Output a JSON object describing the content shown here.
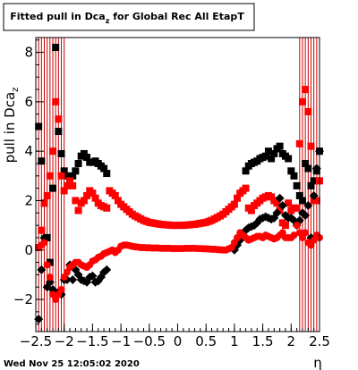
{
  "footer": {
    "timestamp": "Wed Nov 25 12:05:02 2020"
  },
  "chart_data": {
    "type": "scatter",
    "title_main": "Fitted pull in Dca",
    "title_sub": "z",
    "title_rest": " for Global Rec All EtapT",
    "ylabel_main": "pull in Dca",
    "ylabel_sub": "z",
    "xlabel": "η",
    "xlim": [
      -2.5,
      2.5
    ],
    "ylim": [
      -3.3,
      8.6
    ],
    "grid": false,
    "x_ticks": [
      -2.5,
      -2,
      -1.5,
      -1,
      -0.5,
      0,
      0.5,
      1,
      1.5,
      2,
      2.5
    ],
    "x_tick_labels": [
      "−2.5",
      "−2",
      "−1.5",
      "−1",
      "−0.5",
      "0",
      "0.5",
      "1",
      "1.5",
      "2",
      "2.5"
    ],
    "y_ticks": [
      -2,
      0,
      2,
      4,
      6,
      8
    ],
    "y_tick_labels": [
      "−2",
      "0",
      "2",
      "4",
      "6",
      "8"
    ],
    "colors": {
      "series_black": "#000000",
      "series_red": "#ff0000",
      "errors_red": "#cc0000"
    },
    "series": [
      {
        "marker": "square",
        "color": "#000000",
        "points": [
          [
            -2.45,
            5.0
          ],
          [
            -2.4,
            3.6
          ],
          [
            -2.35,
            1.9
          ],
          [
            -2.3,
            0.5
          ],
          [
            -2.25,
            -0.5
          ],
          [
            -2.2,
            2.5
          ],
          [
            -2.15,
            8.2
          ],
          [
            -2.1,
            4.8
          ],
          [
            -2.05,
            3.9
          ],
          [
            -2.0,
            3.2
          ],
          [
            -1.95,
            3.0
          ],
          [
            -1.9,
            2.9
          ],
          [
            -1.85,
            3.0
          ],
          [
            -1.8,
            3.2
          ],
          [
            -1.75,
            3.5
          ],
          [
            -1.7,
            3.8
          ],
          [
            -1.65,
            3.9
          ],
          [
            -1.6,
            3.75
          ],
          [
            -1.55,
            3.55
          ],
          [
            -1.5,
            3.55
          ],
          [
            -1.45,
            3.6
          ],
          [
            -1.4,
            3.5
          ],
          [
            -1.35,
            3.4
          ],
          [
            -1.3,
            3.3
          ],
          [
            -1.25,
            3.1
          ],
          [
            1.2,
            3.2
          ],
          [
            1.25,
            3.4
          ],
          [
            1.3,
            3.5
          ],
          [
            1.35,
            3.55
          ],
          [
            1.4,
            3.6
          ],
          [
            1.45,
            3.7
          ],
          [
            1.5,
            3.75
          ],
          [
            1.55,
            3.8
          ],
          [
            1.6,
            4.0
          ],
          [
            1.65,
            3.7
          ],
          [
            1.7,
            3.9
          ],
          [
            1.75,
            4.1
          ],
          [
            1.8,
            4.2
          ],
          [
            1.85,
            3.9
          ],
          [
            1.9,
            3.8
          ],
          [
            1.95,
            3.7
          ],
          [
            2.0,
            3.2
          ],
          [
            2.05,
            3.0
          ],
          [
            2.1,
            2.6
          ],
          [
            2.15,
            2.2
          ],
          [
            2.2,
            2.0
          ],
          [
            2.25,
            3.5
          ],
          [
            2.3,
            3.3
          ],
          [
            2.35,
            2.6
          ],
          [
            2.4,
            2.8
          ],
          [
            2.45,
            3.2
          ],
          [
            2.5,
            4.0
          ]
        ]
      },
      {
        "marker": "square",
        "color": "#ff0000",
        "points": [
          [
            -2.45,
            0.1
          ],
          [
            -2.4,
            0.8
          ],
          [
            -2.35,
            1.9
          ],
          [
            -2.3,
            2.2
          ],
          [
            -2.25,
            3.0
          ],
          [
            -2.2,
            4.0
          ],
          [
            -2.15,
            6.0
          ],
          [
            -2.1,
            5.3
          ],
          [
            -2.05,
            3.0
          ],
          [
            -2.0,
            2.4
          ],
          [
            -1.95,
            2.6
          ],
          [
            -1.9,
            2.8
          ],
          [
            -1.85,
            2.6
          ],
          [
            -1.8,
            2.0
          ],
          [
            -1.75,
            1.6
          ],
          [
            -1.7,
            1.9
          ],
          [
            -1.65,
            2.0
          ],
          [
            -1.6,
            2.2
          ],
          [
            -1.55,
            2.4
          ],
          [
            -1.5,
            2.3
          ],
          [
            -1.45,
            2.1
          ],
          [
            -1.4,
            1.9
          ],
          [
            -1.35,
            1.8
          ],
          [
            -1.3,
            1.75
          ],
          [
            -1.25,
            1.7
          ],
          [
            -1.2,
            2.4
          ],
          [
            -1.15,
            2.3
          ],
          [
            -1.1,
            2.2
          ],
          [
            -1.05,
            2.0
          ],
          [
            -1.0,
            1.85
          ],
          [
            -0.95,
            1.75
          ],
          [
            -0.9,
            1.65
          ],
          [
            -0.85,
            1.55
          ],
          [
            -0.8,
            1.45
          ],
          [
            -0.75,
            1.38
          ],
          [
            -0.7,
            1.32
          ],
          [
            -0.65,
            1.26
          ],
          [
            -0.6,
            1.2
          ],
          [
            -0.55,
            1.16
          ],
          [
            -0.5,
            1.12
          ],
          [
            -0.45,
            1.1
          ],
          [
            -0.4,
            1.08
          ],
          [
            -0.35,
            1.06
          ],
          [
            -0.3,
            1.04
          ],
          [
            -0.25,
            1.03
          ],
          [
            -0.2,
            1.02
          ],
          [
            -0.15,
            1.01
          ],
          [
            -0.1,
            1.0
          ],
          [
            -0.05,
            1.0
          ],
          [
            0.0,
            1.0
          ],
          [
            0.05,
            1.0
          ],
          [
            0.1,
            1.0
          ],
          [
            0.15,
            1.01
          ],
          [
            0.2,
            1.02
          ],
          [
            0.25,
            1.03
          ],
          [
            0.3,
            1.04
          ],
          [
            0.35,
            1.06
          ],
          [
            0.4,
            1.08
          ],
          [
            0.45,
            1.1
          ],
          [
            0.5,
            1.12
          ],
          [
            0.55,
            1.16
          ],
          [
            0.6,
            1.2
          ],
          [
            0.65,
            1.26
          ],
          [
            0.7,
            1.32
          ],
          [
            0.75,
            1.38
          ],
          [
            0.8,
            1.45
          ],
          [
            0.85,
            1.55
          ],
          [
            0.9,
            1.65
          ],
          [
            0.95,
            1.75
          ],
          [
            1.0,
            1.85
          ],
          [
            1.05,
            2.1
          ],
          [
            1.1,
            2.3
          ],
          [
            1.15,
            2.4
          ],
          [
            1.2,
            2.5
          ],
          [
            1.25,
            1.7
          ],
          [
            1.3,
            1.6
          ],
          [
            1.35,
            1.8
          ],
          [
            1.4,
            1.9
          ],
          [
            1.45,
            2.0
          ],
          [
            1.5,
            2.1
          ],
          [
            1.55,
            2.15
          ],
          [
            1.6,
            2.2
          ],
          [
            1.65,
            2.15
          ],
          [
            1.7,
            2.0
          ],
          [
            1.75,
            1.9
          ],
          [
            1.8,
            1.6
          ],
          [
            1.85,
            1.1
          ],
          [
            1.9,
            1.0
          ],
          [
            1.95,
            1.9
          ],
          [
            2.0,
            1.6
          ],
          [
            2.05,
            1.7
          ],
          [
            2.1,
            1.7
          ],
          [
            2.15,
            4.3
          ],
          [
            2.2,
            6.0
          ],
          [
            2.25,
            6.5
          ],
          [
            2.3,
            5.6
          ],
          [
            2.35,
            4.2
          ],
          [
            2.4,
            2.0
          ],
          [
            2.45,
            2.0
          ],
          [
            2.5,
            2.8
          ]
        ]
      },
      {
        "marker": "diamond",
        "color": "#000000",
        "points": [
          [
            -2.45,
            -2.8
          ],
          [
            -2.4,
            -0.8
          ],
          [
            -2.35,
            0.5
          ],
          [
            -2.3,
            -1.5
          ],
          [
            -2.25,
            -1.3
          ],
          [
            -2.2,
            -1.6
          ],
          [
            -2.15,
            -1.9
          ],
          [
            -2.1,
            -1.7
          ],
          [
            -2.05,
            -1.8
          ],
          [
            -2.0,
            -1.2
          ],
          [
            -1.95,
            -1.2
          ],
          [
            -1.9,
            -0.6
          ],
          [
            -1.85,
            -1.2
          ],
          [
            -1.8,
            -0.8
          ],
          [
            -1.75,
            -1.0
          ],
          [
            -1.7,
            -1.2
          ],
          [
            -1.65,
            -1.25
          ],
          [
            -1.6,
            -1.3
          ],
          [
            -1.55,
            -1.1
          ],
          [
            -1.5,
            -1.05
          ],
          [
            -1.45,
            -1.3
          ],
          [
            -1.4,
            -1.25
          ],
          [
            -1.35,
            -1.1
          ],
          [
            -1.3,
            -0.9
          ],
          [
            -1.25,
            -0.8
          ],
          [
            1.0,
            0.0
          ],
          [
            1.05,
            0.2
          ],
          [
            1.1,
            0.4
          ],
          [
            1.15,
            0.6
          ],
          [
            1.2,
            0.8
          ],
          [
            1.25,
            0.9
          ],
          [
            1.3,
            0.95
          ],
          [
            1.35,
            1.0
          ],
          [
            1.4,
            1.1
          ],
          [
            1.45,
            1.25
          ],
          [
            1.5,
            1.3
          ],
          [
            1.55,
            1.35
          ],
          [
            1.6,
            1.3
          ],
          [
            1.65,
            1.25
          ],
          [
            1.7,
            1.3
          ],
          [
            1.75,
            1.5
          ],
          [
            1.8,
            2.1
          ],
          [
            1.85,
            1.8
          ],
          [
            1.9,
            1.4
          ],
          [
            1.95,
            1.3
          ],
          [
            2.0,
            1.3
          ],
          [
            2.05,
            1.2
          ],
          [
            2.1,
            1.0
          ],
          [
            2.15,
            1.2
          ],
          [
            2.2,
            1.5
          ],
          [
            2.25,
            1.4
          ],
          [
            2.3,
            1.8
          ],
          [
            2.35,
            0.5
          ],
          [
            2.4,
            2.2
          ],
          [
            2.45,
            3.3
          ],
          [
            2.5,
            4.0
          ]
        ]
      },
      {
        "marker": "circle",
        "color": "#ff0000",
        "points": [
          [
            -2.45,
            0.1
          ],
          [
            -2.4,
            0.2
          ],
          [
            -2.35,
            0.3
          ],
          [
            -2.3,
            -0.6
          ],
          [
            -2.25,
            -1.1
          ],
          [
            -2.2,
            -1.8
          ],
          [
            -2.15,
            -2.0
          ],
          [
            -2.1,
            -1.8
          ],
          [
            -2.05,
            -1.6
          ],
          [
            -2.0,
            -1.1
          ],
          [
            -1.95,
            -0.9
          ],
          [
            -1.9,
            -0.7
          ],
          [
            -1.85,
            -0.6
          ],
          [
            -1.8,
            -0.5
          ],
          [
            -1.75,
            -0.5
          ],
          [
            -1.7,
            -0.6
          ],
          [
            -1.65,
            -0.65
          ],
          [
            -1.6,
            -0.7
          ],
          [
            -1.55,
            -0.6
          ],
          [
            -1.5,
            -0.45
          ],
          [
            -1.45,
            -0.4
          ],
          [
            -1.4,
            -0.3
          ],
          [
            -1.35,
            -0.25
          ],
          [
            -1.3,
            -0.15
          ],
          [
            -1.25,
            -0.1
          ],
          [
            -1.2,
            -0.05
          ],
          [
            -1.15,
            0.0
          ],
          [
            -1.1,
            -0.1
          ],
          [
            -1.05,
            0.0
          ],
          [
            -1.0,
            0.15
          ],
          [
            -0.95,
            0.2
          ],
          [
            -0.9,
            0.2
          ],
          [
            -0.85,
            0.18
          ],
          [
            -0.8,
            0.15
          ],
          [
            -0.75,
            0.13
          ],
          [
            -0.7,
            0.12
          ],
          [
            -0.65,
            0.1
          ],
          [
            -0.6,
            0.1
          ],
          [
            -0.55,
            0.09
          ],
          [
            -0.5,
            0.09
          ],
          [
            -0.45,
            0.08
          ],
          [
            -0.4,
            0.08
          ],
          [
            -0.35,
            0.08
          ],
          [
            -0.3,
            0.07
          ],
          [
            -0.25,
            0.07
          ],
          [
            -0.2,
            0.07
          ],
          [
            -0.15,
            0.07
          ],
          [
            -0.1,
            0.06
          ],
          [
            -0.05,
            0.06
          ],
          [
            0.0,
            0.06
          ],
          [
            0.05,
            0.06
          ],
          [
            0.1,
            0.06
          ],
          [
            0.15,
            0.07
          ],
          [
            0.2,
            0.07
          ],
          [
            0.25,
            0.07
          ],
          [
            0.3,
            0.07
          ],
          [
            0.35,
            0.06
          ],
          [
            0.4,
            0.06
          ],
          [
            0.45,
            0.05
          ],
          [
            0.5,
            0.05
          ],
          [
            0.55,
            0.04
          ],
          [
            0.6,
            0.03
          ],
          [
            0.65,
            0.03
          ],
          [
            0.7,
            0.02
          ],
          [
            0.75,
            0.01
          ],
          [
            0.8,
            0.0
          ],
          [
            0.85,
            0.0
          ],
          [
            0.9,
            0.05
          ],
          [
            0.95,
            0.1
          ],
          [
            1.0,
            0.3
          ],
          [
            1.05,
            0.5
          ],
          [
            1.1,
            0.7
          ],
          [
            1.15,
            0.6
          ],
          [
            1.2,
            0.5
          ],
          [
            1.25,
            0.4
          ],
          [
            1.3,
            0.45
          ],
          [
            1.35,
            0.5
          ],
          [
            1.4,
            0.55
          ],
          [
            1.45,
            0.55
          ],
          [
            1.5,
            0.5
          ],
          [
            1.55,
            0.6
          ],
          [
            1.6,
            0.55
          ],
          [
            1.65,
            0.5
          ],
          [
            1.7,
            0.45
          ],
          [
            1.75,
            0.5
          ],
          [
            1.8,
            0.6
          ],
          [
            1.85,
            0.7
          ],
          [
            1.9,
            0.5
          ],
          [
            1.95,
            0.5
          ],
          [
            2.0,
            0.5
          ],
          [
            2.05,
            0.6
          ],
          [
            2.1,
            1.0
          ],
          [
            2.15,
            0.7
          ],
          [
            2.2,
            0.5
          ],
          [
            2.25,
            0.7
          ],
          [
            2.3,
            0.3
          ],
          [
            2.35,
            0.2
          ],
          [
            2.4,
            0.4
          ],
          [
            2.45,
            0.6
          ],
          [
            2.5,
            0.5
          ]
        ]
      }
    ]
  }
}
